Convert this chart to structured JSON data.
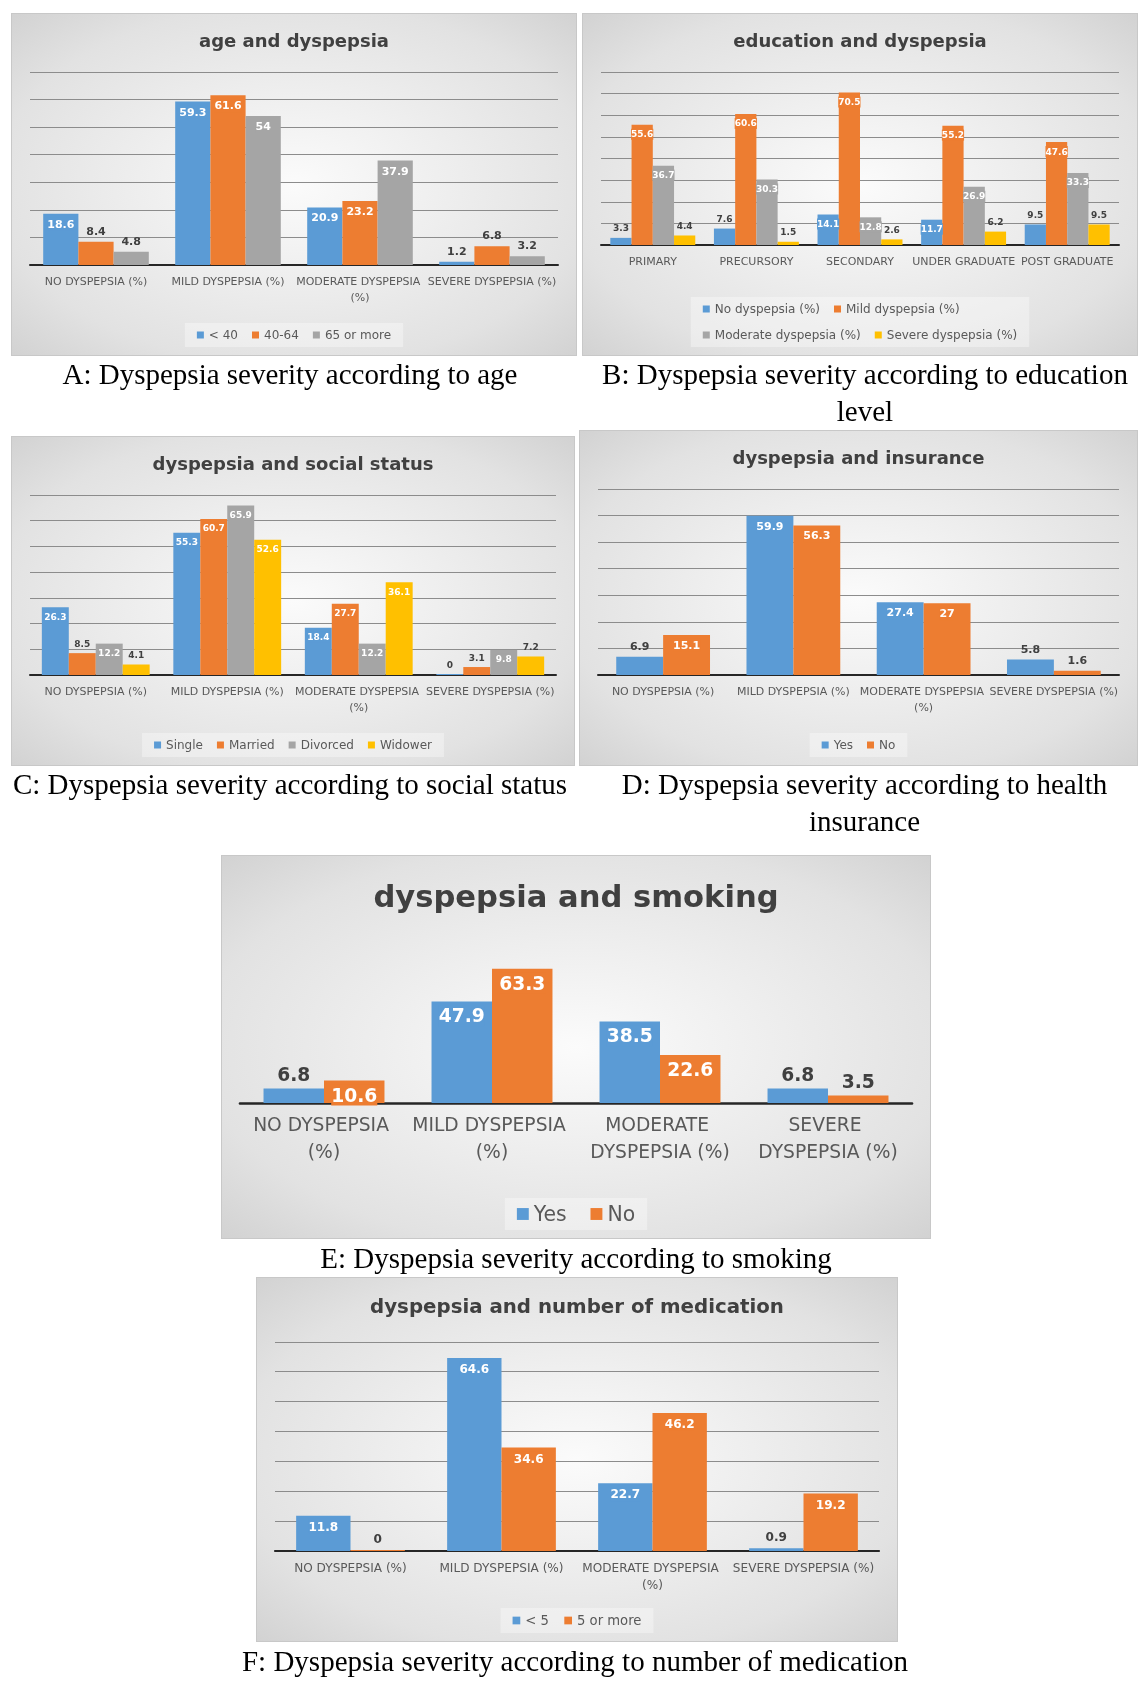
{
  "chart_data": [
    {
      "type": "bar",
      "title": "age and dyspepsia",
      "categories": [
        "NO DYSPEPSIA (%)",
        "MILD DYSPEPSIA (%)",
        "MODERATE DYSPEPSIA (%)",
        "SEVERE DYSPEPSIA (%)"
      ],
      "series": [
        {
          "name": "< 40",
          "color": "#5b9bd5",
          "values": [
            18.6,
            59.3,
            20.9,
            1.2
          ]
        },
        {
          "name": "40-64",
          "color": "#ed7d31",
          "values": [
            8.4,
            61.6,
            23.2,
            6.8
          ]
        },
        {
          "name": "65 or more",
          "color": "#a5a5a5",
          "values": [
            4.8,
            54,
            37.9,
            3.2
          ]
        }
      ],
      "ylim": [
        0,
        70
      ],
      "yticks": [
        {
          "value": 0,
          "label": null
        },
        {
          "value": 10,
          "label": null
        },
        {
          "value": 20,
          "label": null
        },
        {
          "value": 30,
          "label": null
        },
        {
          "value": 40,
          "label": null
        },
        {
          "value": 50,
          "label": null
        },
        {
          "value": 60,
          "label": null
        },
        {
          "value": 70,
          "label": null
        }
      ],
      "tick_labels": "x",
      "grid": "y",
      "legend": "bottom",
      "data_labels": true,
      "annotations": [
        "A: Dyspepsia severity according to age"
      ]
    },
    {
      "type": "bar",
      "title": "education and dyspepsia",
      "categories": [
        "PRIMARY",
        "PRECURSORY",
        "SECONDARY",
        "UNDER GRADUATE",
        "POST GRADUATE"
      ],
      "series": [
        {
          "name": "No dyspepsia (%)",
          "color": "#5b9bd5",
          "values": [
            3.3,
            7.6,
            14.1,
            11.7,
            9.5
          ]
        },
        {
          "name": "Mild dyspepsia (%)",
          "color": "#ed7d31",
          "values": [
            55.6,
            60.6,
            70.5,
            55.2,
            47.6
          ]
        },
        {
          "name": "Moderate dyspepsia (%)",
          "color": "#a5a5a5",
          "values": [
            36.7,
            30.3,
            12.8,
            26.9,
            33.3
          ]
        },
        {
          "name": "Severe dyspepsia (%)",
          "color": "#ffc000",
          "values": [
            4.4,
            1.5,
            2.6,
            6.2,
            9.5
          ]
        }
      ],
      "ylim": [
        0,
        80
      ],
      "yticks": [
        {
          "value": 0,
          "label": null
        },
        {
          "value": 10,
          "label": null
        },
        {
          "value": 20,
          "label": null
        },
        {
          "value": 30,
          "label": null
        },
        {
          "value": 40,
          "label": null
        },
        {
          "value": 50,
          "label": null
        },
        {
          "value": 60,
          "label": null
        },
        {
          "value": 70,
          "label": null
        },
        {
          "value": 80,
          "label": null
        }
      ],
      "tick_labels": "x",
      "grid": "y",
      "legend": "bottom",
      "data_labels": true,
      "annotations": [
        "B: Dyspepsia severity according to education level"
      ]
    },
    {
      "type": "bar",
      "title": "dyspepsia and social status",
      "categories": [
        "NO DYSPEPSIA (%)",
        "MILD DYSPEPSIA (%)",
        "MODERATE DYSPEPSIA (%)",
        "SEVERE DYSPEPSIA (%)"
      ],
      "series": [
        {
          "name": "Single",
          "color": "#5b9bd5",
          "values": [
            26.3,
            55.3,
            18.4,
            0
          ]
        },
        {
          "name": "Married",
          "color": "#ed7d31",
          "values": [
            8.5,
            60.7,
            27.7,
            3.1
          ]
        },
        {
          "name": "Divorced",
          "color": "#a5a5a5",
          "values": [
            12.2,
            65.9,
            12.2,
            9.8
          ]
        },
        {
          "name": "Widower",
          "color": "#ffc000",
          "values": [
            4.1,
            52.6,
            36.1,
            7.2
          ]
        }
      ],
      "ylim": [
        0,
        70
      ],
      "yticks": [
        {
          "value": 0,
          "label": null
        },
        {
          "value": 10,
          "label": null
        },
        {
          "value": 20,
          "label": null
        },
        {
          "value": 30,
          "label": null
        },
        {
          "value": 40,
          "label": null
        },
        {
          "value": 50,
          "label": null
        },
        {
          "value": 60,
          "label": null
        },
        {
          "value": 70,
          "label": null
        }
      ],
      "tick_labels": "x",
      "grid": "y",
      "legend": "bottom",
      "data_labels": true,
      "annotations": [
        "C: Dyspepsia severity according to social status"
      ]
    },
    {
      "type": "bar",
      "title": "dyspepsia and insurance",
      "categories": [
        "NO DYSPEPSIA (%)",
        "MILD DYSPEPSIA (%)",
        "MODERATE DYSPEPSIA (%)",
        "SEVERE DYSPEPSIA (%)"
      ],
      "series": [
        {
          "name": "Yes",
          "color": "#5b9bd5",
          "values": [
            6.9,
            59.9,
            27.4,
            5.8
          ]
        },
        {
          "name": "No",
          "color": "#ed7d31",
          "values": [
            15.1,
            56.3,
            27,
            1.6
          ]
        }
      ],
      "ylim": [
        0,
        70
      ],
      "yticks": [
        {
          "value": 0,
          "label": null
        },
        {
          "value": 10,
          "label": null
        },
        {
          "value": 20,
          "label": null
        },
        {
          "value": 30,
          "label": null
        },
        {
          "value": 40,
          "label": null
        },
        {
          "value": 50,
          "label": null
        },
        {
          "value": 60,
          "label": null
        },
        {
          "value": 70,
          "label": null
        }
      ],
      "tick_labels": "x",
      "grid": "y",
      "legend": "bottom",
      "data_labels": true,
      "annotations": [
        "D: Dyspepsia severity according to health insurance"
      ]
    },
    {
      "type": "bar",
      "title": "dyspepsia and smoking",
      "categories": [
        "NO DYSPEPSIA (%)",
        "MILD DYSPEPSIA (%)",
        "MODERATE DYSPEPSIA (%)",
        "SEVERE DYSPEPSIA (%)"
      ],
      "series": [
        {
          "name": "Yes",
          "color": "#5b9bd5",
          "values": [
            6.8,
            47.9,
            38.5,
            6.8
          ]
        },
        {
          "name": "No",
          "color": "#ed7d31",
          "values": [
            10.6,
            63.3,
            22.6,
            3.5
          ]
        }
      ],
      "tick_labels": "x",
      "legend": "bottom",
      "data_labels": true,
      "annotations": [
        "E: Dyspepsia severity according to smoking"
      ]
    },
    {
      "type": "bar",
      "title": "dyspepsia and number of medication",
      "categories": [
        "NO DYSPEPSIA (%)",
        "MILD DYSPEPSIA (%)",
        "MODERATE DYSPEPSIA (%)",
        "SEVERE DYSPEPSIA (%)"
      ],
      "series": [
        {
          "name": "< 5",
          "color": "#5b9bd5",
          "values": [
            11.8,
            64.6,
            22.7,
            0.9
          ]
        },
        {
          "name": "5 or more",
          "color": "#ed7d31",
          "values": [
            0,
            34.6,
            46.2,
            19.2
          ]
        }
      ],
      "ylim": [
        0,
        70
      ],
      "yticks": [
        {
          "value": 0,
          "label": null
        },
        {
          "value": 10,
          "label": null
        },
        {
          "value": 20,
          "label": null
        },
        {
          "value": 30,
          "label": null
        },
        {
          "value": 40,
          "label": null
        },
        {
          "value": 50,
          "label": null
        },
        {
          "value": 60,
          "label": null
        },
        {
          "value": 70,
          "label": null
        }
      ],
      "tick_labels": "x",
      "grid": "y",
      "legend": "bottom",
      "data_labels": true,
      "annotations": [
        "F: Dyspepsia severity according to number of medication"
      ]
    }
  ]
}
